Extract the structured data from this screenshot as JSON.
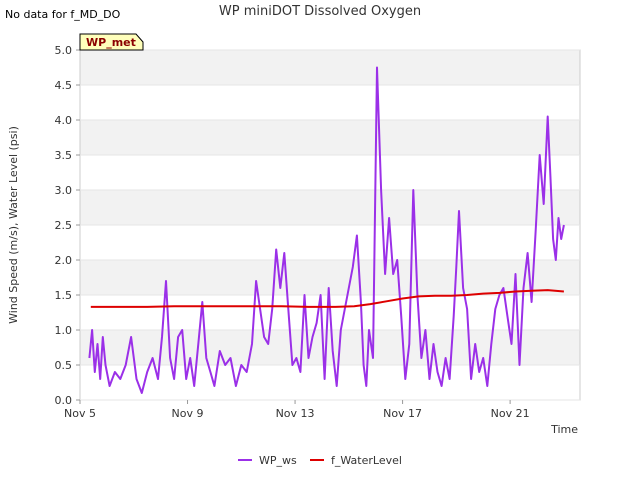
{
  "notice": "No data for f_MD_DO",
  "badge": "WP_met",
  "colors": {
    "wp_ws": "#9b30e8",
    "water_level": "#dd0000",
    "band": "#f2f2f2",
    "badge_fill": "#ffffbb",
    "badge_text": "#8b0000"
  },
  "chart_data": {
    "type": "line",
    "title": "WP miniDOT Dissolved Oxygen",
    "xlabel": "Time",
    "ylabel": "Wind Speed (m/s), Water Level (psi)",
    "xlim": [
      5.0,
      23.6
    ],
    "ylim": [
      0.0,
      5.0
    ],
    "x_ticks": [
      {
        "value": 5,
        "label": "Nov 5"
      },
      {
        "value": 9,
        "label": "Nov 9"
      },
      {
        "value": 13,
        "label": "Nov 13"
      },
      {
        "value": 17,
        "label": "Nov 17"
      },
      {
        "value": 21,
        "label": "Nov 21"
      }
    ],
    "y_ticks": [
      "0.0",
      "0.5",
      "1.0",
      "1.5",
      "2.0",
      "2.5",
      "3.0",
      "3.5",
      "4.0",
      "4.5",
      "5.0"
    ],
    "grid": "horizontal bands",
    "legend_position": "bottom-center",
    "series": [
      {
        "name": "WP_ws",
        "x": [
          5.35,
          5.45,
          5.55,
          5.65,
          5.75,
          5.85,
          5.95,
          6.1,
          6.3,
          6.5,
          6.7,
          6.9,
          7.1,
          7.3,
          7.5,
          7.7,
          7.9,
          8.05,
          8.2,
          8.35,
          8.5,
          8.65,
          8.8,
          8.95,
          9.1,
          9.25,
          9.4,
          9.55,
          9.7,
          9.85,
          10.0,
          10.2,
          10.4,
          10.6,
          10.8,
          11.0,
          11.2,
          11.4,
          11.55,
          11.7,
          11.85,
          12.0,
          12.15,
          12.3,
          12.45,
          12.6,
          12.75,
          12.9,
          13.05,
          13.2,
          13.35,
          13.5,
          13.65,
          13.8,
          13.95,
          14.1,
          14.25,
          14.4,
          14.55,
          14.7,
          14.85,
          15.0,
          15.15,
          15.3,
          15.45,
          15.55,
          15.65,
          15.75,
          15.9,
          16.05,
          16.2,
          16.35,
          16.5,
          16.65,
          16.8,
          16.95,
          17.1,
          17.25,
          17.4,
          17.55,
          17.7,
          17.85,
          18.0,
          18.15,
          18.3,
          18.45,
          18.6,
          18.75,
          18.9,
          19.0,
          19.1,
          19.25,
          19.4,
          19.55,
          19.7,
          19.85,
          20.0,
          20.15,
          20.3,
          20.45,
          20.6,
          20.75,
          20.9,
          21.05,
          21.2,
          21.35,
          21.5,
          21.65,
          21.8,
          21.95,
          22.1,
          22.25,
          22.4,
          22.5,
          22.6,
          22.7,
          22.8,
          22.9,
          23.0
        ],
        "y": [
          0.6,
          1.0,
          0.4,
          0.8,
          0.3,
          0.9,
          0.5,
          0.2,
          0.4,
          0.3,
          0.5,
          0.9,
          0.3,
          0.1,
          0.4,
          0.6,
          0.3,
          0.9,
          1.7,
          0.6,
          0.3,
          0.9,
          1.0,
          0.3,
          0.6,
          0.2,
          0.8,
          1.4,
          0.6,
          0.4,
          0.2,
          0.7,
          0.5,
          0.6,
          0.2,
          0.5,
          0.4,
          0.8,
          1.7,
          1.3,
          0.9,
          0.8,
          1.3,
          2.15,
          1.6,
          2.1,
          1.3,
          0.5,
          0.6,
          0.4,
          1.5,
          0.6,
          0.9,
          1.1,
          1.5,
          0.3,
          1.6,
          0.7,
          0.2,
          1.0,
          1.3,
          1.6,
          1.9,
          2.35,
          1.4,
          0.5,
          0.2,
          1.0,
          0.6,
          4.75,
          3.0,
          1.8,
          2.6,
          1.8,
          2.0,
          1.2,
          0.3,
          0.8,
          3.0,
          1.5,
          0.6,
          1.0,
          0.3,
          0.8,
          0.4,
          0.2,
          0.6,
          0.3,
          1.2,
          1.9,
          2.7,
          1.6,
          1.3,
          0.3,
          0.8,
          0.4,
          0.6,
          0.2,
          0.8,
          1.3,
          1.5,
          1.6,
          1.2,
          0.8,
          1.8,
          0.5,
          1.6,
          2.1,
          1.4,
          2.4,
          3.5,
          2.8,
          4.05,
          3.2,
          2.3,
          2.0,
          2.6,
          2.3,
          2.5
        ]
      },
      {
        "name": "f_WaterLevel",
        "x": [
          5.4,
          6.5,
          7.5,
          8.5,
          9.5,
          10.5,
          11.5,
          12.5,
          13.5,
          14.5,
          15.2,
          15.8,
          16.4,
          17.0,
          17.6,
          18.2,
          18.8,
          19.4,
          20.0,
          20.6,
          21.2,
          21.8,
          22.4,
          23.0
        ],
        "y": [
          1.33,
          1.33,
          1.33,
          1.34,
          1.34,
          1.34,
          1.34,
          1.34,
          1.33,
          1.33,
          1.34,
          1.37,
          1.41,
          1.45,
          1.48,
          1.49,
          1.49,
          1.5,
          1.52,
          1.53,
          1.55,
          1.56,
          1.57,
          1.55
        ]
      }
    ]
  }
}
